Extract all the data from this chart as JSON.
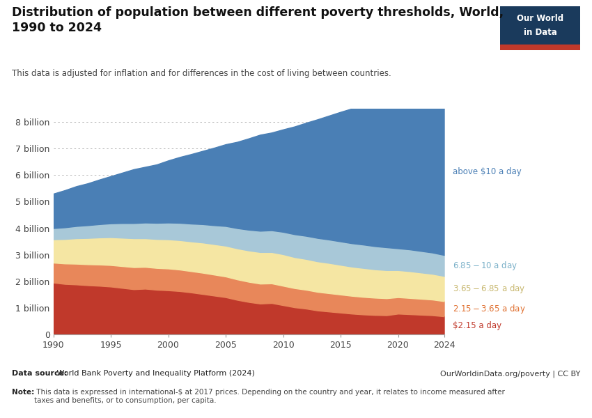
{
  "title": "Distribution of population between different poverty thresholds, World,\n1990 to 2024",
  "subtitle": "This data is adjusted for inflation and for differences in the cost of living between countries.",
  "years": [
    1990,
    1991,
    1992,
    1993,
    1994,
    1995,
    1996,
    1997,
    1998,
    1999,
    2000,
    2001,
    2002,
    2003,
    2004,
    2005,
    2006,
    2007,
    2008,
    2009,
    2010,
    2011,
    2012,
    2013,
    2014,
    2015,
    2016,
    2017,
    2018,
    2019,
    2020,
    2021,
    2022,
    2023,
    2024
  ],
  "below_215": [
    1.95,
    1.9,
    1.88,
    1.85,
    1.83,
    1.8,
    1.75,
    1.7,
    1.72,
    1.68,
    1.66,
    1.63,
    1.58,
    1.52,
    1.46,
    1.4,
    1.3,
    1.22,
    1.16,
    1.18,
    1.1,
    1.02,
    0.97,
    0.9,
    0.86,
    0.82,
    0.78,
    0.75,
    0.73,
    0.72,
    0.78,
    0.76,
    0.74,
    0.72,
    0.68
  ],
  "between_215_365": [
    0.75,
    0.77,
    0.78,
    0.79,
    0.8,
    0.81,
    0.82,
    0.83,
    0.82,
    0.82,
    0.82,
    0.81,
    0.8,
    0.8,
    0.79,
    0.78,
    0.77,
    0.76,
    0.75,
    0.74,
    0.73,
    0.72,
    0.71,
    0.7,
    0.69,
    0.68,
    0.67,
    0.66,
    0.65,
    0.64,
    0.62,
    0.61,
    0.6,
    0.59,
    0.57
  ],
  "between_365_685": [
    0.88,
    0.92,
    0.96,
    0.99,
    1.02,
    1.05,
    1.07,
    1.09,
    1.08,
    1.09,
    1.1,
    1.11,
    1.12,
    1.14,
    1.15,
    1.16,
    1.17,
    1.18,
    1.19,
    1.18,
    1.19,
    1.17,
    1.16,
    1.15,
    1.14,
    1.12,
    1.1,
    1.09,
    1.07,
    1.06,
    1.02,
    1.01,
    0.99,
    0.97,
    0.95
  ],
  "between_685_10": [
    0.42,
    0.44,
    0.46,
    0.48,
    0.5,
    0.52,
    0.55,
    0.57,
    0.59,
    0.61,
    0.63,
    0.65,
    0.67,
    0.69,
    0.71,
    0.74,
    0.76,
    0.78,
    0.8,
    0.82,
    0.84,
    0.86,
    0.87,
    0.88,
    0.88,
    0.88,
    0.88,
    0.88,
    0.87,
    0.86,
    0.82,
    0.82,
    0.81,
    0.8,
    0.79
  ],
  "above_10": [
    1.3,
    1.4,
    1.5,
    1.58,
    1.68,
    1.78,
    1.9,
    2.03,
    2.1,
    2.2,
    2.34,
    2.48,
    2.62,
    2.76,
    2.92,
    3.08,
    3.25,
    3.44,
    3.62,
    3.68,
    3.86,
    4.06,
    4.26,
    4.47,
    4.67,
    4.88,
    5.08,
    5.27,
    5.46,
    5.62,
    5.55,
    5.73,
    5.92,
    6.1,
    6.28
  ],
  "colors": {
    "below_215": "#c0392b",
    "between_215_365": "#e8875a",
    "between_365_685": "#f5e6a3",
    "between_685_10": "#a8c8d8",
    "above_10": "#4a7fb5"
  },
  "labels": {
    "above_10": "above $10 a day",
    "between_685_10": "$6.85-$10 a day",
    "between_365_685": "$3.65-$6.85 a day",
    "between_215_365": "$2.15-$3.65 a day",
    "below_215": "$2.15 a day"
  },
  "label_colors": {
    "above_10": "#4a7fb5",
    "between_685_10": "#7ab0c8",
    "between_365_685": "#c8b870",
    "between_215_365": "#e07030",
    "below_215": "#c0392b"
  },
  "xlim": [
    1990,
    2024
  ],
  "ylim": [
    0,
    8.5
  ],
  "yticks": [
    0,
    1,
    2,
    3,
    4,
    5,
    6,
    7,
    8
  ],
  "ytick_labels": [
    "0",
    "1 billion",
    "2 billion",
    "3 billion",
    "4 billion",
    "5 billion",
    "6 billion",
    "7 billion",
    "8 billion"
  ],
  "xticks": [
    1990,
    1995,
    2000,
    2005,
    2010,
    2015,
    2020,
    2024
  ],
  "data_source_bold": "Data source:",
  "data_source_rest": " World Bank Poverty and Inequality Platform (2024)",
  "note_bold": "Note:",
  "note_rest": " This data is expressed in international-$ at 2017 prices. Depending on the country and year, it relates to income measured after\ntaxes and benefits, or to consumption, per capita.",
  "owid_url": "OurWorldinData.org/poverty | CC BY",
  "logo_line1": "Our World",
  "logo_line2": "in Data",
  "logo_bg": "#1a3a5c",
  "logo_red": "#c0392b",
  "background_color": "#ffffff",
  "grid_color": "#aaaaaa"
}
